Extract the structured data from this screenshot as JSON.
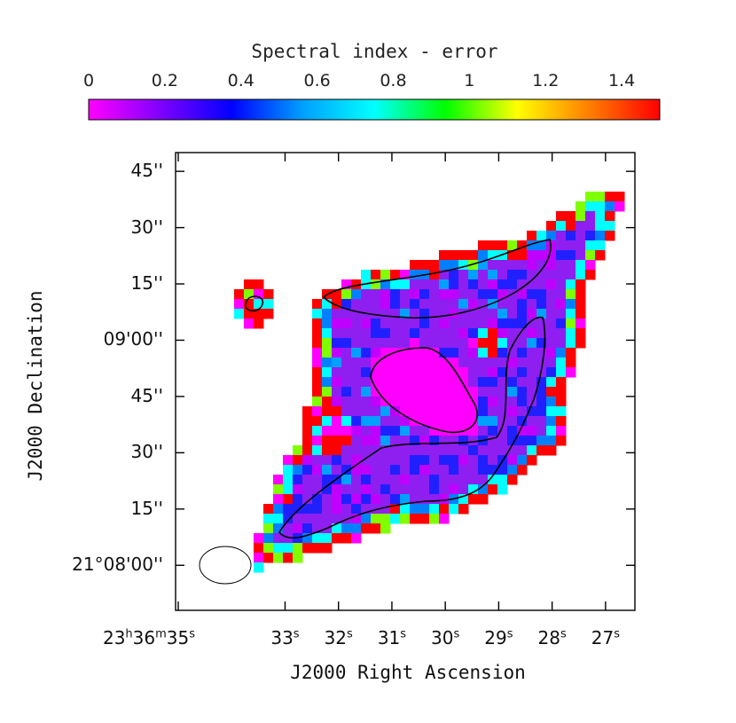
{
  "chart_data": {
    "type": "heatmap",
    "colorbar": {
      "title": "Spectral index - error",
      "ticks": [
        "0",
        "0.2",
        "0.4",
        "0.6",
        "0.8",
        "1",
        "1.2",
        "1.4"
      ],
      "tick_values": [
        0,
        0.2,
        0.4,
        0.6,
        0.8,
        1.0,
        1.2,
        1.4
      ],
      "range": [
        0,
        1.5
      ],
      "colormap": [
        "#ff00ff",
        "#8000ff",
        "#0000ff",
        "#00a0ff",
        "#00ffff",
        "#00ff00",
        "#ffff00",
        "#ff8000",
        "#ff0000"
      ]
    },
    "xlabel": "J2000 Right Ascension",
    "ylabel": "J2000 Declination",
    "x_ticks": [
      {
        "value_s": 35,
        "label": "23h36m35s",
        "h": "23",
        "m": "36",
        "s": "35"
      },
      {
        "value_s": 33,
        "label": "33s"
      },
      {
        "value_s": 32,
        "label": "32s"
      },
      {
        "value_s": 31,
        "label": "31s"
      },
      {
        "value_s": 30,
        "label": "30s"
      },
      {
        "value_s": 29,
        "label": "29s"
      },
      {
        "value_s": 28,
        "label": "28s"
      },
      {
        "value_s": 27,
        "label": "27s"
      }
    ],
    "y_ticks": [
      {
        "value_arcsec": 45,
        "label": "45''"
      },
      {
        "value_arcsec": 30,
        "label": "30''"
      },
      {
        "value_arcsec": 15,
        "label": "15''"
      },
      {
        "value_arcsec": 0,
        "label": "09'00''"
      },
      {
        "value_arcsec": -15,
        "label": "45''"
      },
      {
        "value_arcsec": -30,
        "label": "30''"
      },
      {
        "value_arcsec": -45,
        "label": "15''"
      },
      {
        "value_arcsec": -60,
        "label": "21°08'00''"
      }
    ],
    "xlim_s": [
      35.05,
      26.45
    ],
    "ylim_arcsec": [
      -72,
      50
    ],
    "colors": {
      "magenta": "#ff00ff",
      "violet": "#8f1ff0",
      "blue": "#2020ff",
      "cyan": "#00ffff",
      "red": "#ff0000",
      "contour": "#000000"
    },
    "beam": {
      "major_arcsec": 12.6,
      "minor_arcsec": 9.6,
      "position_s": 35.3,
      "position_arcsec": -60
    }
  }
}
